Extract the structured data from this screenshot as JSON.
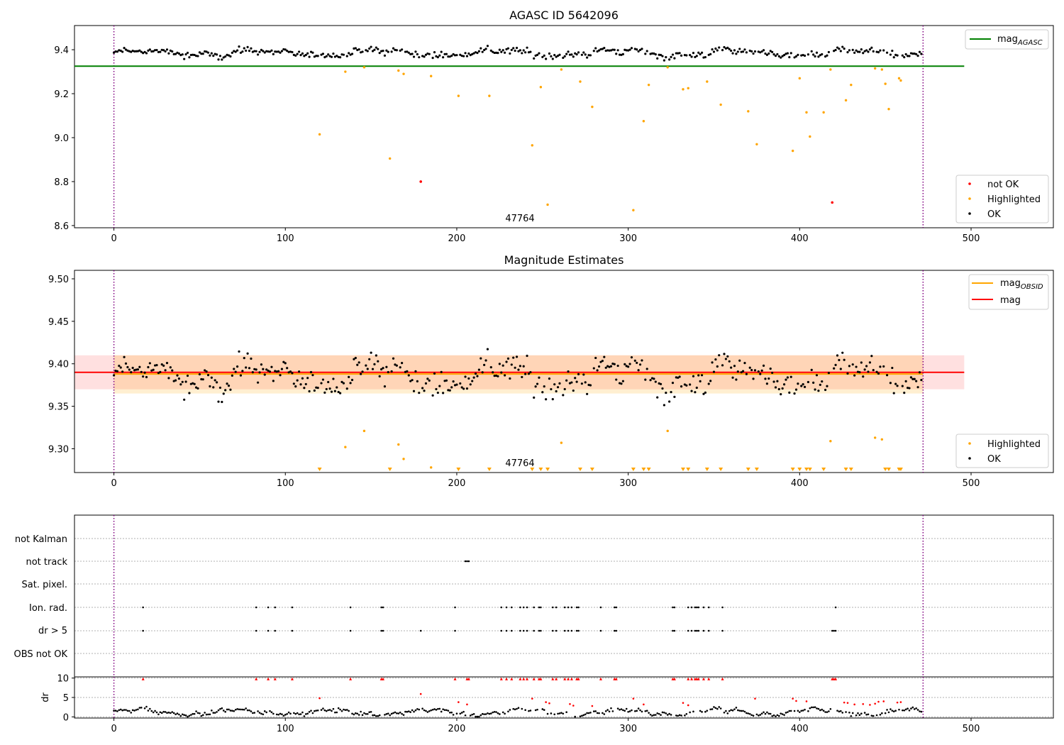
{
  "chart_data": [
    {
      "type": "scatter",
      "title": "AGASC ID 5642096",
      "xlim": [
        -23,
        548
      ],
      "ylim": [
        8.59,
        9.51
      ],
      "xticks": [
        0,
        100,
        200,
        300,
        400,
        500
      ],
      "yticks": [
        8.6,
        8.8,
        9.0,
        9.2,
        9.4
      ],
      "ytick_labels": [
        "8.6",
        "8.8",
        "9.0",
        "9.2",
        "9.4"
      ],
      "annotation": {
        "text": "47764",
        "x": 236,
        "y": 8.62
      },
      "vlines": [
        0,
        472
      ],
      "hline": {
        "name": "mag",
        "sub": "AGASC",
        "value": 9.325,
        "xmax": 496,
        "color": "#008000"
      },
      "legend_upper": [
        {
          "label": "mag",
          "sub": "AGASC",
          "color": "#008000",
          "kind": "line"
        }
      ],
      "legend_lower": [
        {
          "label": "not OK",
          "color": "#ff0000",
          "kind": "point"
        },
        {
          "label": "Highlighted",
          "color": "#ffa500",
          "kind": "point"
        },
        {
          "label": "OK",
          "color": "#000000",
          "kind": "point"
        }
      ],
      "not_ok": [
        [
          179,
          8.8
        ],
        [
          419,
          8.705
        ]
      ],
      "highlighted": [
        [
          120,
          9.015
        ],
        [
          135,
          9.3
        ],
        [
          146,
          9.32
        ],
        [
          161,
          8.905
        ],
        [
          166,
          9.305
        ],
        [
          169,
          9.29
        ],
        [
          185,
          9.28
        ],
        [
          201,
          9.19
        ],
        [
          219,
          9.19
        ],
        [
          244,
          8.965
        ],
        [
          249,
          9.23
        ],
        [
          253,
          8.695
        ],
        [
          261,
          9.31
        ],
        [
          272,
          9.255
        ],
        [
          279,
          9.14
        ],
        [
          303,
          8.67
        ],
        [
          309,
          9.075
        ],
        [
          312,
          9.24
        ],
        [
          323,
          9.32
        ],
        [
          332,
          9.22
        ],
        [
          335,
          9.225
        ],
        [
          346,
          9.255
        ],
        [
          354,
          9.15
        ],
        [
          370,
          9.12
        ],
        [
          375,
          8.97
        ],
        [
          396,
          8.94
        ],
        [
          400,
          9.27
        ],
        [
          404,
          9.115
        ],
        [
          406,
          9.005
        ],
        [
          414,
          9.115
        ],
        [
          418,
          9.31
        ],
        [
          427,
          9.17
        ],
        [
          430,
          9.24
        ],
        [
          444,
          9.315
        ],
        [
          448,
          9.31
        ],
        [
          450,
          9.245
        ],
        [
          452,
          9.13
        ],
        [
          458,
          9.27
        ],
        [
          459,
          9.26
        ]
      ]
    },
    {
      "type": "scatter",
      "title": "Magnitude Estimates",
      "xlim": [
        -23,
        548
      ],
      "ylim": [
        9.272,
        9.51
      ],
      "xticks": [
        0,
        100,
        200,
        300,
        400,
        500
      ],
      "yticks": [
        9.3,
        9.35,
        9.4,
        9.45,
        9.5
      ],
      "ytick_labels": [
        "9.30",
        "9.35",
        "9.40",
        "9.45",
        "9.50"
      ],
      "annotation": {
        "text": "47764",
        "x": 236,
        "y": 9.283
      },
      "vlines": [
        0,
        472
      ],
      "mag_line": {
        "name": "mag",
        "value": 9.39,
        "band": [
          9.37,
          9.41
        ],
        "xmax": 496,
        "color": "#ff0000"
      },
      "obsid_line": {
        "name": "mag",
        "sub": "OBSID",
        "value": 9.388,
        "band": [
          9.365,
          9.41
        ],
        "xmax": 472,
        "color": "#ffa500"
      },
      "legend_upper": [
        {
          "label": "mag",
          "sub": "OBSID",
          "color": "#ffa500",
          "kind": "line"
        },
        {
          "label": "mag",
          "sub": "",
          "color": "#ff0000",
          "kind": "line"
        }
      ],
      "legend_lower": [
        {
          "label": "Highlighted",
          "color": "#ffa500",
          "kind": "point"
        },
        {
          "label": "OK",
          "color": "#000000",
          "kind": "point"
        }
      ],
      "highlighted": [
        [
          135,
          9.302
        ],
        [
          146,
          9.321
        ],
        [
          166,
          9.305
        ],
        [
          169,
          9.288
        ],
        [
          185,
          9.278
        ],
        [
          261,
          9.307
        ],
        [
          323,
          9.321
        ],
        [
          418,
          9.309
        ],
        [
          444,
          9.313
        ],
        [
          448,
          9.311
        ]
      ],
      "highlighted_off_scale_x": [
        120,
        161,
        201,
        219,
        244,
        249,
        253,
        272,
        279,
        303,
        309,
        312,
        332,
        335,
        346,
        354,
        370,
        375,
        396,
        400,
        404,
        406,
        414,
        427,
        430,
        450,
        452,
        458,
        459
      ]
    },
    {
      "type": "scatter",
      "title": "",
      "xlim": [
        -23,
        548
      ],
      "categories": [
        "OBS not OK",
        "dr > 5",
        "Ion. rad.",
        "Sat. pixel.",
        "not track",
        "not Kalman"
      ],
      "vlines": [
        0,
        472
      ],
      "flags": {
        "not track": [
          205,
          206,
          207
        ],
        "Ion. rad.": [
          17,
          83,
          90,
          94,
          104,
          138,
          156,
          157,
          199,
          226,
          229,
          232,
          237,
          239,
          241,
          245,
          248,
          249,
          256,
          258,
          263,
          265,
          267,
          270,
          271,
          284,
          292,
          293,
          326,
          327,
          335,
          337,
          339,
          340,
          341,
          344,
          347,
          355,
          421
        ],
        "dr > 5": [
          17,
          83,
          90,
          94,
          104,
          138,
          156,
          157,
          179,
          199,
          226,
          229,
          232,
          237,
          239,
          241,
          245,
          248,
          249,
          256,
          258,
          263,
          265,
          267,
          270,
          271,
          284,
          292,
          293,
          326,
          327,
          335,
          337,
          339,
          340,
          341,
          344,
          347,
          355,
          419,
          420,
          421
        ]
      }
    },
    {
      "type": "scatter",
      "title": "",
      "ylabel": "dr",
      "xlim": [
        -23,
        548
      ],
      "ylim": [
        -0.3,
        10.3
      ],
      "xticks": [
        0,
        100,
        200,
        300,
        400,
        500
      ],
      "yticks": [
        0,
        5,
        10
      ],
      "ytick_labels": [
        "0",
        "5",
        "10"
      ],
      "vlines": [
        0,
        472
      ],
      "clipped_x": [
        17,
        83,
        90,
        94,
        104,
        138,
        156,
        157,
        199,
        206,
        207,
        226,
        229,
        232,
        237,
        239,
        241,
        245,
        248,
        249,
        256,
        258,
        263,
        265,
        267,
        270,
        271,
        284,
        292,
        293,
        326,
        327,
        335,
        337,
        339,
        340,
        341,
        344,
        347,
        355,
        419,
        420,
        421
      ],
      "red_points": [
        [
          120,
          4.8
        ],
        [
          179,
          5.9
        ],
        [
          201,
          3.8
        ],
        [
          206,
          3.2
        ],
        [
          244,
          4.7
        ],
        [
          252,
          3.8
        ],
        [
          254,
          3.5
        ],
        [
          266,
          3.3
        ],
        [
          268,
          2.9
        ],
        [
          279,
          2.8
        ],
        [
          303,
          4.7
        ],
        [
          309,
          3.2
        ],
        [
          332,
          3.6
        ],
        [
          335,
          3.0
        ],
        [
          374,
          4.7
        ],
        [
          396,
          4.7
        ],
        [
          398,
          4.1
        ],
        [
          404,
          4.0
        ],
        [
          426,
          3.7
        ],
        [
          428,
          3.6
        ],
        [
          432,
          3.2
        ],
        [
          437,
          3.3
        ],
        [
          441,
          3.1
        ],
        [
          444,
          3.4
        ],
        [
          446,
          3.9
        ],
        [
          449,
          4.0
        ],
        [
          457,
          3.7
        ],
        [
          459,
          3.8
        ]
      ]
    }
  ]
}
